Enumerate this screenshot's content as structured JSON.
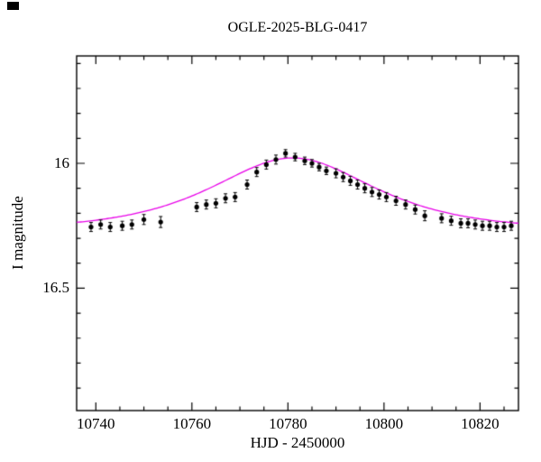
{
  "chart_data": {
    "type": "scatter",
    "title": "OGLE-2025-BLG-0417",
    "xlabel": "HJD - 2450000",
    "ylabel": "I magnitude",
    "xlim": [
      10736,
      10828
    ],
    "ylim_mag": [
      15.57,
      16.99
    ],
    "y_axis_inverted": true,
    "x_major_ticks": [
      10740,
      10760,
      10780,
      10800,
      10820
    ],
    "x_minor_step": 5,
    "y_major_ticks": [
      16,
      16.5
    ],
    "y_major_tick_labels": [
      "16",
      "16.5"
    ],
    "y_minor_step": 0.1,
    "grid": false,
    "legend": "none",
    "colors": {
      "points": "#000000",
      "model": "#e800e8",
      "axis": "#000000",
      "background": "#ffffff"
    },
    "points": [
      [
        10739.0,
        16.255,
        0.018
      ],
      [
        10741.0,
        16.245,
        0.018
      ],
      [
        10743.0,
        16.255,
        0.018
      ],
      [
        10745.5,
        16.25,
        0.018
      ],
      [
        10747.5,
        16.245,
        0.018
      ],
      [
        10750.0,
        16.225,
        0.02
      ],
      [
        10753.5,
        16.235,
        0.022
      ],
      [
        10761.0,
        16.175,
        0.018
      ],
      [
        10763.0,
        16.165,
        0.018
      ],
      [
        10765.0,
        16.16,
        0.018
      ],
      [
        10767.0,
        16.14,
        0.018
      ],
      [
        10769.0,
        16.135,
        0.018
      ],
      [
        10771.5,
        16.085,
        0.018
      ],
      [
        10773.5,
        16.035,
        0.018
      ],
      [
        10775.5,
        16.005,
        0.018
      ],
      [
        10777.5,
        15.985,
        0.018
      ],
      [
        10779.5,
        15.96,
        0.015
      ],
      [
        10781.5,
        15.975,
        0.015
      ],
      [
        10783.5,
        15.99,
        0.015
      ],
      [
        10785.0,
        16.0,
        0.015
      ],
      [
        10786.5,
        16.015,
        0.015
      ],
      [
        10788.0,
        16.03,
        0.015
      ],
      [
        10790.0,
        16.04,
        0.018
      ],
      [
        10791.5,
        16.055,
        0.018
      ],
      [
        10793.0,
        16.07,
        0.018
      ],
      [
        10794.5,
        16.085,
        0.018
      ],
      [
        10796.0,
        16.1,
        0.018
      ],
      [
        10797.5,
        16.115,
        0.018
      ],
      [
        10799.0,
        16.125,
        0.018
      ],
      [
        10800.5,
        16.135,
        0.018
      ],
      [
        10802.5,
        16.15,
        0.018
      ],
      [
        10804.5,
        16.165,
        0.018
      ],
      [
        10806.5,
        16.185,
        0.018
      ],
      [
        10808.5,
        16.21,
        0.02
      ],
      [
        10812.0,
        16.22,
        0.018
      ],
      [
        10814.0,
        16.23,
        0.018
      ],
      [
        10816.0,
        16.24,
        0.018
      ],
      [
        10817.5,
        16.24,
        0.018
      ],
      [
        10819.0,
        16.245,
        0.018
      ],
      [
        10820.5,
        16.25,
        0.018
      ],
      [
        10822.0,
        16.25,
        0.018
      ],
      [
        10823.5,
        16.255,
        0.018
      ],
      [
        10825.0,
        16.255,
        0.018
      ],
      [
        10826.5,
        16.25,
        0.018
      ]
    ],
    "model": {
      "type": "paczynski_microlensing",
      "t0": 10781,
      "tE": 20,
      "u0": 1.05,
      "baseline_mag": 16.27,
      "peak_mag": 15.97
    }
  }
}
